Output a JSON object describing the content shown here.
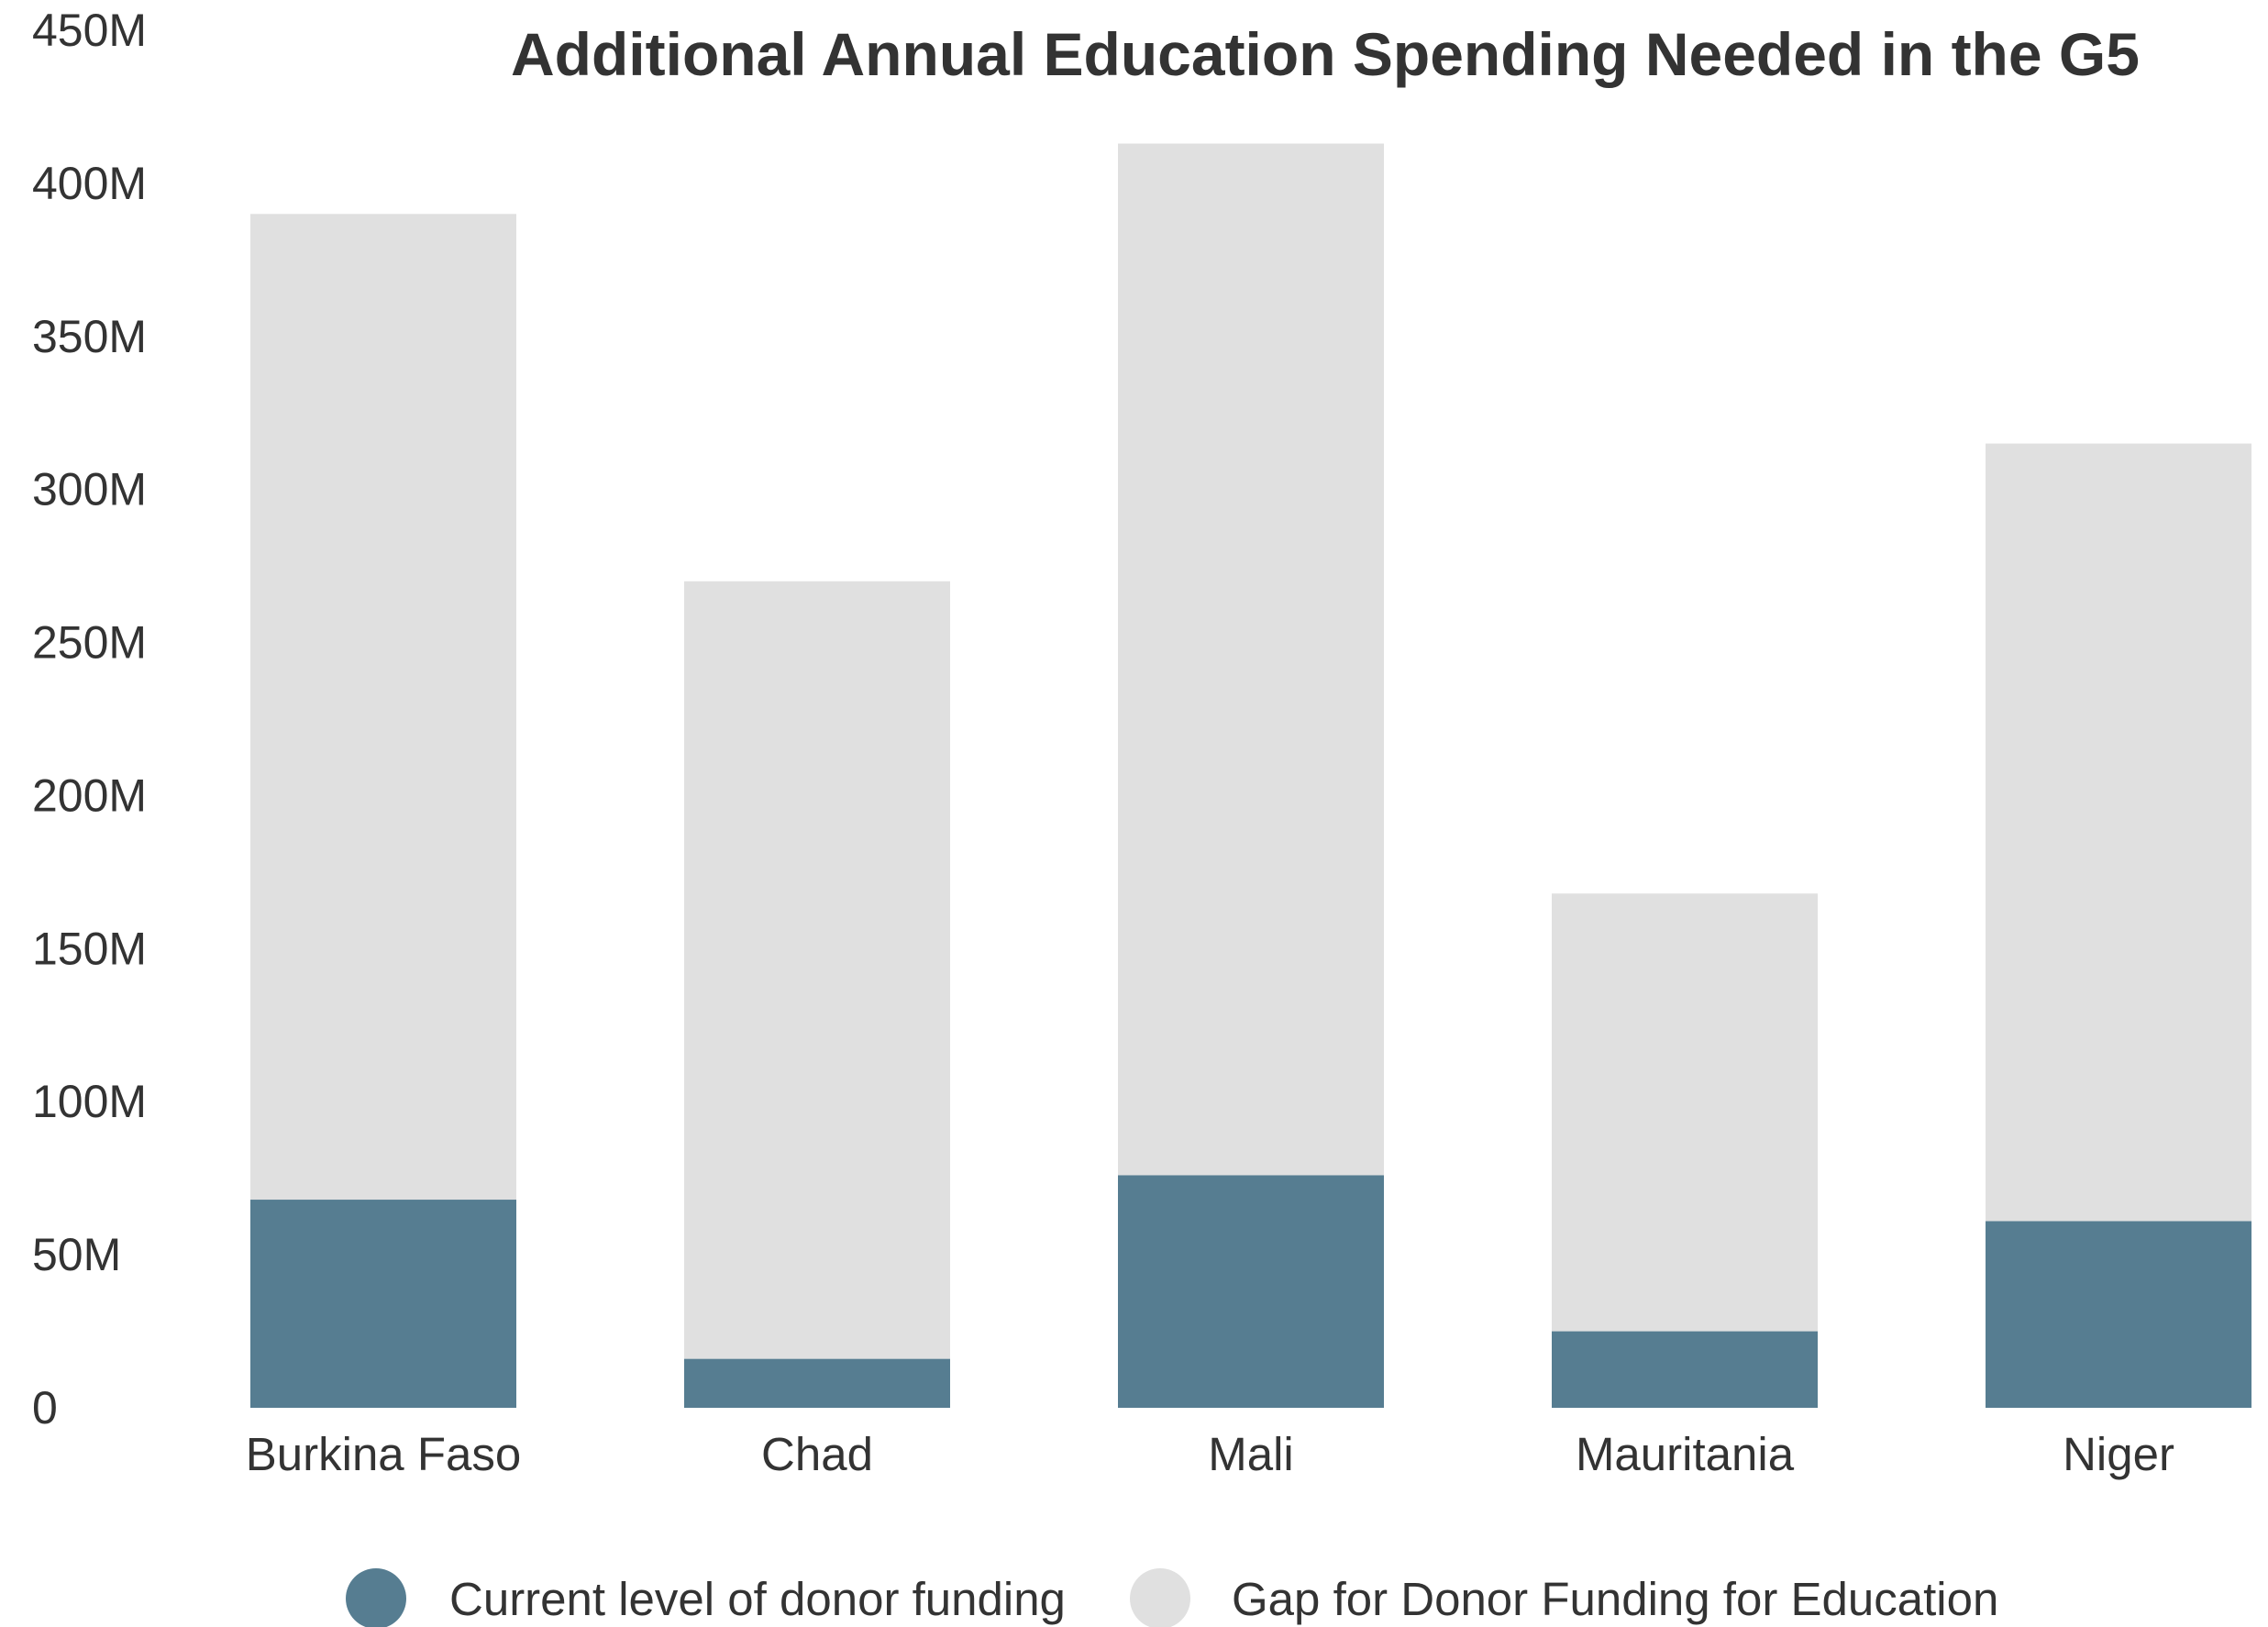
{
  "chart_data": {
    "type": "bar",
    "stacked": true,
    "title": "Additional Annual Education Spending Needed in the G5",
    "xlabel": "",
    "ylabel": "",
    "ylim": [
      0,
      450000000
    ],
    "yticks": [
      {
        "value": 0,
        "label": "0"
      },
      {
        "value": 50000000,
        "label": "50M"
      },
      {
        "value": 100000000,
        "label": "100M"
      },
      {
        "value": 150000000,
        "label": "150M"
      },
      {
        "value": 200000000,
        "label": "200M"
      },
      {
        "value": 250000000,
        "label": "250M"
      },
      {
        "value": 300000000,
        "label": "300M"
      },
      {
        "value": 350000000,
        "label": "350M"
      },
      {
        "value": 400000000,
        "label": "400M"
      },
      {
        "value": 450000000,
        "label": "450M"
      }
    ],
    "categories": [
      "Burkina Faso",
      "Chad",
      "Mali",
      "Mauritania",
      "Niger"
    ],
    "series": [
      {
        "name": "Current level of donor funding",
        "color": "#567d91",
        "values": [
          68000000,
          16000000,
          76000000,
          25000000,
          61000000
        ]
      },
      {
        "name": "Gap for Donor Funding for Education",
        "color": "#e0e0e0",
        "values": [
          322000000,
          254000000,
          337000000,
          143000000,
          254000000
        ]
      }
    ],
    "grid": false,
    "legend": "bottom-center"
  }
}
